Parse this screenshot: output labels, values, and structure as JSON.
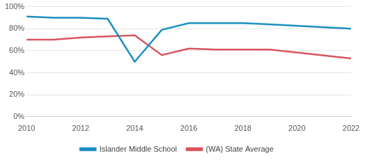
{
  "chart_data": {
    "type": "line",
    "series": [
      {
        "name": "Islander Middle School",
        "color": "#1a8fc1",
        "x": [
          2010,
          2011,
          2012,
          2013,
          2014,
          2015,
          2016,
          2017,
          2018,
          2019,
          2022
        ],
        "values": [
          91,
          90,
          90,
          89,
          50,
          79,
          85,
          85,
          85,
          84,
          80
        ]
      },
      {
        "name": "(WA) State Average",
        "color": "#d9545f",
        "x": [
          2010,
          2011,
          2012,
          2013,
          2014,
          2015,
          2016,
          2017,
          2018,
          2019,
          2022
        ],
        "values": [
          70,
          70,
          72,
          73,
          74,
          56,
          62,
          61,
          61,
          61,
          53
        ]
      }
    ],
    "xlim": [
      2010,
      2022
    ],
    "xticks": [
      2010,
      2012,
      2014,
      2016,
      2018,
      2020,
      2022
    ],
    "ylim": [
      0,
      100
    ],
    "yticks": [
      {
        "value": 0,
        "label": "0%"
      },
      {
        "value": 20,
        "label": "20%"
      },
      {
        "value": 40,
        "label": "40%"
      },
      {
        "value": 60,
        "label": "60%"
      },
      {
        "value": 80,
        "label": "80%"
      },
      {
        "value": 100,
        "label": "100%"
      }
    ],
    "grid": true,
    "legend": "bottom"
  }
}
